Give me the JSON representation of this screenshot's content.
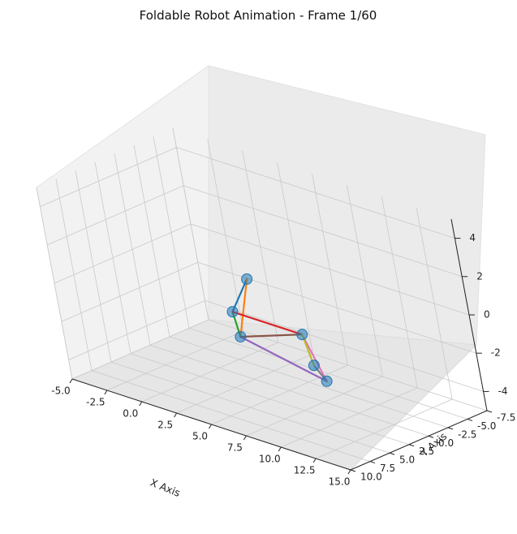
{
  "chart_data": {
    "type": "scatter",
    "title": "Foldable Robot Animation - Frame 1/60",
    "xlabel": "X Axis",
    "ylabel": "Y Axis",
    "zlabel": "",
    "xlim": [
      -5,
      15
    ],
    "ylim": [
      -7.5,
      10
    ],
    "zlim": [
      -5,
      5
    ],
    "grid": true,
    "x_ticks": [
      "-5.0",
      "-2.5",
      "0.0",
      "2.5",
      "5.0",
      "7.5",
      "10.0",
      "12.5",
      "15.0"
    ],
    "y_ticks": [
      "-7.5",
      "-5.0",
      "-2.5",
      "0.0",
      "2.5",
      "5.0",
      "7.5",
      "10.0"
    ],
    "z_ticks": [
      "-4",
      "-2",
      "0",
      "2",
      "4"
    ],
    "joints": [
      {
        "x": 5.0,
        "y": 5.0,
        "z": 0.0
      },
      {
        "x": 2.5,
        "y": -1.3,
        "z": 0.0
      },
      {
        "x": 3.0,
        "y": 1.5,
        "z": -2.4
      },
      {
        "x": 10.0,
        "y": 5.0,
        "z": 0.0
      },
      {
        "x": 9.5,
        "y": 3.5,
        "z": -2.0
      },
      {
        "x": 8.0,
        "y": 0.0,
        "z": -3.8
      }
    ],
    "links": [
      {
        "from": 0,
        "to": 1,
        "color": "#1f77b4"
      },
      {
        "from": 1,
        "to": 2,
        "color": "#ff7f0e"
      },
      {
        "from": 2,
        "to": 0,
        "color": "#2ca02c"
      },
      {
        "from": 0,
        "to": 3,
        "color": "#d62728"
      },
      {
        "from": 2,
        "to": 5,
        "color": "#9467bd"
      },
      {
        "from": 2,
        "to": 3,
        "color": "#8c564b"
      },
      {
        "from": 3,
        "to": 5,
        "color": "#e377c2"
      },
      {
        "from": 4,
        "to": 5,
        "color": "#7f7f7f"
      },
      {
        "from": 4,
        "to": 3,
        "color": "#bcbd22"
      }
    ],
    "marker_color": "#1f77b4"
  }
}
